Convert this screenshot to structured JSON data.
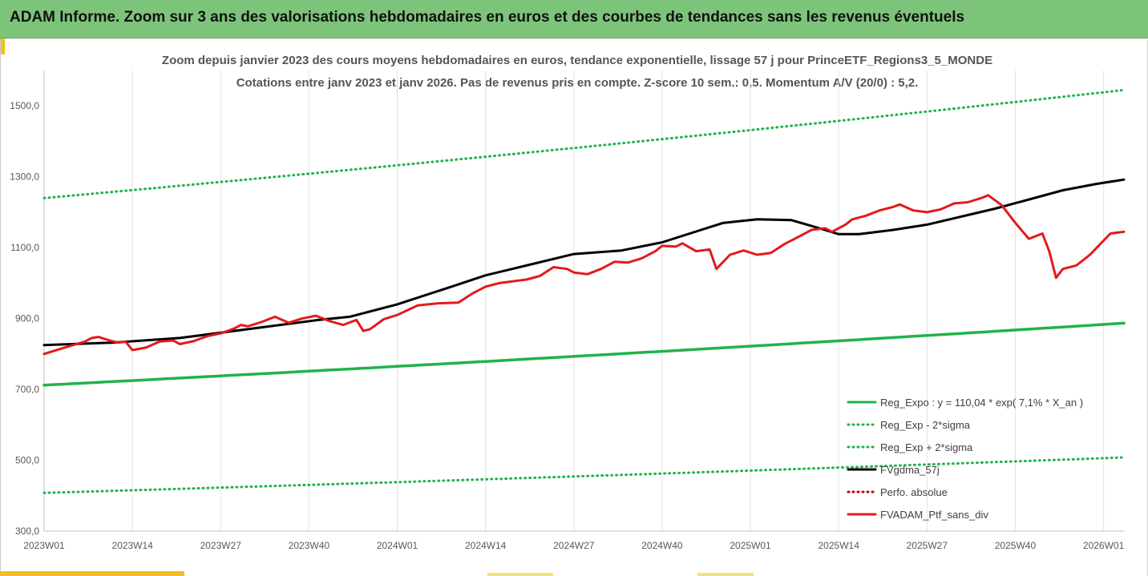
{
  "banner": {
    "title": "ADAM Informe. Zoom sur 3 ans des valorisations hebdomadaires en euros et des courbes de tendances sans les revenus éventuels"
  },
  "chart_data": {
    "type": "line",
    "title": "Zoom depuis janvier 2023 des cours moyens hebdomadaires  en euros, tendance exponentielle, lissage 57 j pour PrinceETF_Regions3_5_MONDE",
    "subtitle": "Cotations entre janv 2023 et janv 2026. Pas de revenus pris en compte. Z-score 10 sem.: 0,5. Momentum  A/V (20/0) : 5,2.",
    "xlabel": "",
    "ylabel": "",
    "ylim": [
      300,
      1600
    ],
    "yticks": [
      "300,0",
      "500,0",
      "700,0",
      "900,0",
      "1100,0",
      "1300,0",
      "1500,0"
    ],
    "ytick_values": [
      300,
      500,
      700,
      900,
      1100,
      1300,
      1500
    ],
    "xtick_labels": [
      "2023W01",
      "2023W14",
      "2023W27",
      "2023W40",
      "2024W01",
      "2024W14",
      "2024W27",
      "2024W40",
      "2025W01",
      "2025W14",
      "2025W27",
      "2025W40",
      "2026W01"
    ],
    "xtick_index": [
      0,
      13,
      26,
      39,
      52,
      65,
      78,
      91,
      104,
      117,
      130,
      143,
      156
    ],
    "x_count": 160,
    "grid": "vertical",
    "legend_position": "bottom-right",
    "series": [
      {
        "name": "Reg_Expo : y = 110,04 * exp( 7,1% *  X_an )",
        "style": "solid",
        "color": "#22b24c",
        "start": 712,
        "end": 887
      },
      {
        "name": "Reg_Exp - 2*sigma",
        "style": "dotted",
        "color": "#22b24c",
        "start": 408,
        "end": 508
      },
      {
        "name": "Reg_Exp + 2*sigma",
        "style": "dotted",
        "color": "#22b24c",
        "start": 1240,
        "end": 1545
      },
      {
        "name": "FVgdma_57j",
        "style": "solid",
        "color": "#000000",
        "values": [
          [
            0,
            825
          ],
          [
            10,
            832
          ],
          [
            20,
            845
          ],
          [
            30,
            870
          ],
          [
            40,
            895
          ],
          [
            45,
            905
          ],
          [
            52,
            940
          ],
          [
            60,
            990
          ],
          [
            65,
            1022
          ],
          [
            70,
            1045
          ],
          [
            78,
            1082
          ],
          [
            85,
            1092
          ],
          [
            91,
            1115
          ],
          [
            100,
            1170
          ],
          [
            105,
            1180
          ],
          [
            110,
            1178
          ],
          [
            115,
            1150
          ],
          [
            117,
            1138
          ],
          [
            120,
            1138
          ],
          [
            125,
            1150
          ],
          [
            130,
            1165
          ],
          [
            140,
            1210
          ],
          [
            150,
            1262
          ],
          [
            155,
            1280
          ],
          [
            159,
            1292
          ]
        ]
      },
      {
        "name": "Perfo. absolue",
        "style": "dotted",
        "color": "#c00000",
        "values": []
      },
      {
        "name": "FVADAM_Ptf_sans_div",
        "style": "solid",
        "color": "#e31a1c",
        "values": [
          [
            0,
            800
          ],
          [
            3,
            818
          ],
          [
            6,
            835
          ],
          [
            7,
            845
          ],
          [
            8,
            848
          ],
          [
            10,
            836
          ],
          [
            11,
            832
          ],
          [
            12,
            835
          ],
          [
            13,
            811
          ],
          [
            15,
            818
          ],
          [
            17,
            835
          ],
          [
            19,
            838
          ],
          [
            20,
            828
          ],
          [
            22,
            836
          ],
          [
            24,
            850
          ],
          [
            26,
            858
          ],
          [
            28,
            872
          ],
          [
            29,
            882
          ],
          [
            30,
            878
          ],
          [
            32,
            890
          ],
          [
            34,
            905
          ],
          [
            36,
            888
          ],
          [
            38,
            900
          ],
          [
            40,
            908
          ],
          [
            42,
            893
          ],
          [
            44,
            882
          ],
          [
            46,
            896
          ],
          [
            47,
            865
          ],
          [
            48,
            870
          ],
          [
            50,
            898
          ],
          [
            52,
            910
          ],
          [
            55,
            937
          ],
          [
            58,
            943
          ],
          [
            61,
            945
          ],
          [
            63,
            970
          ],
          [
            65,
            990
          ],
          [
            67,
            1000
          ],
          [
            69,
            1005
          ],
          [
            71,
            1010
          ],
          [
            73,
            1020
          ],
          [
            75,
            1045
          ],
          [
            77,
            1040
          ],
          [
            78,
            1030
          ],
          [
            80,
            1025
          ],
          [
            82,
            1040
          ],
          [
            84,
            1060
          ],
          [
            86,
            1058
          ],
          [
            88,
            1070
          ],
          [
            90,
            1090
          ],
          [
            91,
            1105
          ],
          [
            93,
            1103
          ],
          [
            94,
            1112
          ],
          [
            96,
            1090
          ],
          [
            98,
            1095
          ],
          [
            99,
            1040
          ],
          [
            101,
            1080
          ],
          [
            103,
            1092
          ],
          [
            105,
            1080
          ],
          [
            107,
            1085
          ],
          [
            109,
            1110
          ],
          [
            111,
            1130
          ],
          [
            113,
            1150
          ],
          [
            115,
            1155
          ],
          [
            116,
            1145
          ],
          [
            118,
            1165
          ],
          [
            119,
            1180
          ],
          [
            121,
            1190
          ],
          [
            123,
            1205
          ],
          [
            125,
            1215
          ],
          [
            126,
            1222
          ],
          [
            128,
            1205
          ],
          [
            130,
            1200
          ],
          [
            132,
            1208
          ],
          [
            134,
            1225
          ],
          [
            136,
            1228
          ],
          [
            138,
            1240
          ],
          [
            139,
            1248
          ],
          [
            141,
            1220
          ],
          [
            143,
            1170
          ],
          [
            145,
            1125
          ],
          [
            147,
            1140
          ],
          [
            148,
            1090
          ],
          [
            149,
            1015
          ],
          [
            150,
            1040
          ],
          [
            152,
            1050
          ],
          [
            154,
            1080
          ],
          [
            155,
            1100
          ],
          [
            157,
            1140
          ],
          [
            159,
            1145
          ]
        ]
      }
    ]
  }
}
